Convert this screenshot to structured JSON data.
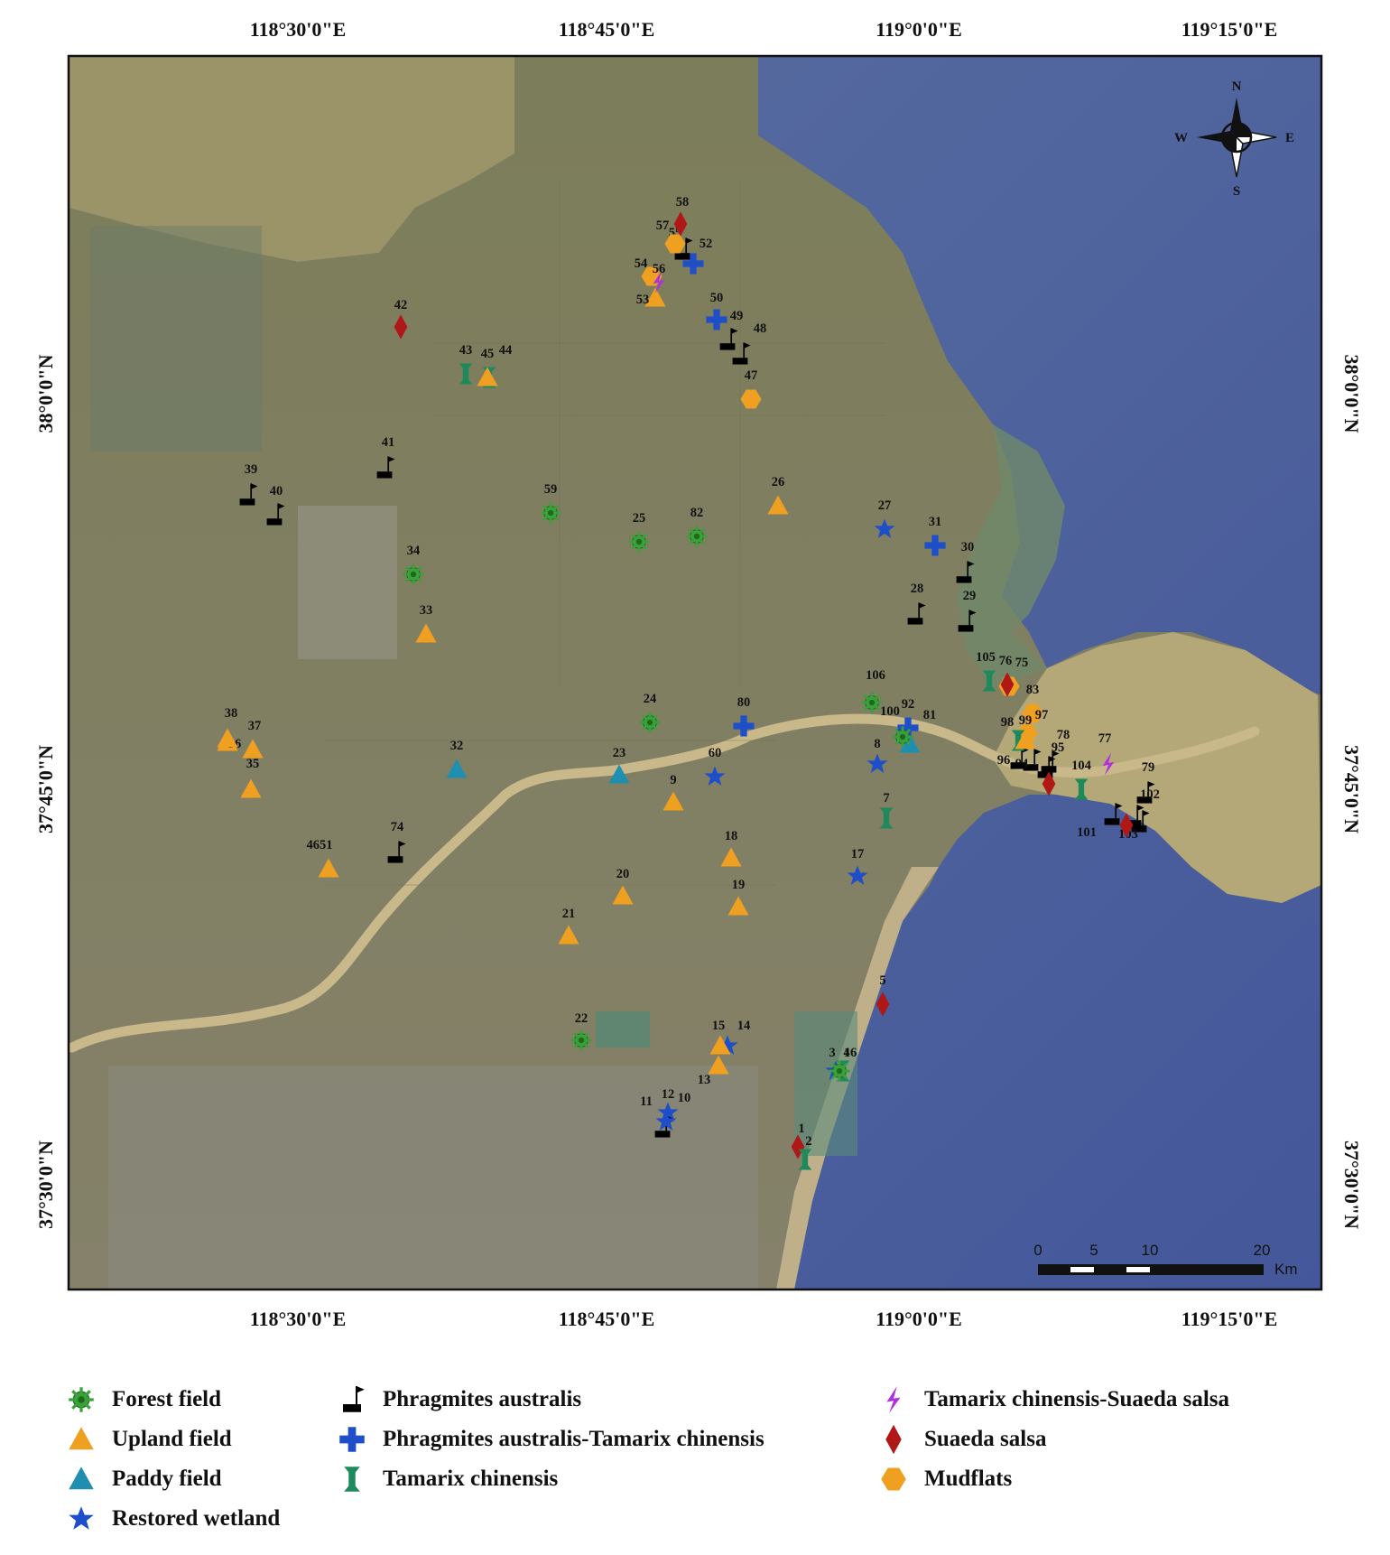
{
  "axes": {
    "top_ticks": [
      "118°30'0\"E",
      "118°45'0\"E",
      "119°0'0\"E",
      "119°15'0\"E"
    ],
    "bottom_ticks": [
      "118°30'0\"E",
      "118°45'0\"E",
      "119°0'0\"E",
      "119°15'0\"E"
    ],
    "left_ticks": [
      "38°0'0\"N",
      "37°45'0\"N",
      "37°30'0\"N"
    ],
    "right_ticks": [
      "38°0'0\"N",
      "37°45'0\"N",
      "37°30'0\"N"
    ]
  },
  "north_arrow": {
    "n": "N",
    "s": "S",
    "e": "E",
    "w": "W"
  },
  "scale_bar": {
    "ticks": [
      "0",
      "5",
      "10",
      "20"
    ],
    "unit": "Km"
  },
  "legend": [
    {
      "key": "forest",
      "label": "Forest field"
    },
    {
      "key": "upland",
      "label": "Upland field"
    },
    {
      "key": "paddy",
      "label": "Paddy field"
    },
    {
      "key": "restored",
      "label": "Restored wetland"
    },
    {
      "key": "phrag",
      "label": "Phragmites australis"
    },
    {
      "key": "phragtam",
      "label": "Phragmites australis-Tamarix chinensis"
    },
    {
      "key": "tamarix",
      "label": "Tamarix chinensis"
    },
    {
      "key": "tamsuaeda",
      "label": "Tamarix chinensis-Suaeda salsa"
    },
    {
      "key": "suaeda",
      "label": "Suaeda salsa"
    },
    {
      "key": "mudflat",
      "label": "Mudflats"
    }
  ],
  "colors": {
    "forest": "#3aa03a",
    "upland": "#f0a020",
    "paddy": "#1f8fb0",
    "restored": "#1f4fc8",
    "phrag": "#000000",
    "phragtam": "#1f4fc8",
    "tamarix": "#1e8a5c",
    "tamsuaeda": "#b030e0",
    "suaeda": "#b01818",
    "mudflat": "#f0a020",
    "sea": "#4a6aa0",
    "land": "#7a7a5c",
    "river": "#c8b88a"
  },
  "sites": [
    {
      "id": "1",
      "type": "suaeda"
    },
    {
      "id": "2",
      "type": "tamarix"
    },
    {
      "id": "3",
      "type": "restored"
    },
    {
      "id": "4",
      "type": "tamarix"
    },
    {
      "id": "16",
      "type": "forest"
    },
    {
      "id": "5",
      "type": "suaeda"
    },
    {
      "id": "7",
      "type": "tamarix"
    },
    {
      "id": "8",
      "type": "restored"
    },
    {
      "id": "9",
      "type": "upland"
    },
    {
      "id": "10",
      "type": "restored"
    },
    {
      "id": "11",
      "type": "phrag"
    },
    {
      "id": "12",
      "type": "restored"
    },
    {
      "id": "13",
      "type": "upland"
    },
    {
      "id": "14",
      "type": "restored"
    },
    {
      "id": "15",
      "type": "upland"
    },
    {
      "id": "17",
      "type": "restored"
    },
    {
      "id": "18",
      "type": "upland"
    },
    {
      "id": "19",
      "type": "upland"
    },
    {
      "id": "20",
      "type": "upland"
    },
    {
      "id": "21",
      "type": "upland"
    },
    {
      "id": "22",
      "type": "forest"
    },
    {
      "id": "23",
      "type": "paddy"
    },
    {
      "id": "24",
      "type": "forest"
    },
    {
      "id": "25",
      "type": "forest"
    },
    {
      "id": "26",
      "type": "upland"
    },
    {
      "id": "27",
      "type": "restored"
    },
    {
      "id": "28",
      "type": "phrag"
    },
    {
      "id": "29",
      "type": "phrag"
    },
    {
      "id": "30",
      "type": "phrag"
    },
    {
      "id": "31",
      "type": "phragtam"
    },
    {
      "id": "32",
      "type": "paddy"
    },
    {
      "id": "33",
      "type": "upland"
    },
    {
      "id": "34",
      "type": "forest"
    },
    {
      "id": "35",
      "type": "upland"
    },
    {
      "id": "36",
      "type": "upland"
    },
    {
      "id": "37",
      "type": "upland"
    },
    {
      "id": "38",
      "type": "upland"
    },
    {
      "id": "39",
      "type": "phrag"
    },
    {
      "id": "40",
      "type": "phrag"
    },
    {
      "id": "41",
      "type": "phrag"
    },
    {
      "id": "42",
      "type": "suaeda"
    },
    {
      "id": "43",
      "type": "tamarix"
    },
    {
      "id": "44",
      "type": "tamarix"
    },
    {
      "id": "45",
      "type": "upland"
    },
    {
      "id": "4651",
      "type": "upland"
    },
    {
      "id": "47",
      "type": "mudflat"
    },
    {
      "id": "48",
      "type": "phrag"
    },
    {
      "id": "49",
      "type": "phrag"
    },
    {
      "id": "50",
      "type": "phragtam"
    },
    {
      "id": "52",
      "type": "phragtam"
    },
    {
      "id": "53",
      "type": "upland"
    },
    {
      "id": "54",
      "type": "mudflat"
    },
    {
      "id": "55",
      "type": "phrag"
    },
    {
      "id": "56",
      "type": "tamsuaeda"
    },
    {
      "id": "57",
      "type": "mudflat"
    },
    {
      "id": "58",
      "type": "suaeda"
    },
    {
      "id": "59",
      "type": "forest"
    },
    {
      "id": "60",
      "type": "restored"
    },
    {
      "id": "74",
      "type": "phrag"
    },
    {
      "id": "75",
      "type": "mudflat"
    },
    {
      "id": "76",
      "type": "suaeda"
    },
    {
      "id": "77",
      "type": "tamsuaeda"
    },
    {
      "id": "78",
      "type": "phrag"
    },
    {
      "id": "79",
      "type": "phrag"
    },
    {
      "id": "80",
      "type": "phragtam"
    },
    {
      "id": "81",
      "type": "paddy"
    },
    {
      "id": "82",
      "type": "forest"
    },
    {
      "id": "83",
      "type": "mudflat"
    },
    {
      "id": "92",
      "type": "phragtam"
    },
    {
      "id": "94",
      "type": "phrag"
    },
    {
      "id": "95",
      "type": "phrag"
    },
    {
      "id": "96",
      "type": "phrag"
    },
    {
      "id": "97",
      "type": "mudflat"
    },
    {
      "id": "98",
      "type": "tamarix"
    },
    {
      "id": "99",
      "type": "upland"
    },
    {
      "id": "100",
      "type": "forest"
    },
    {
      "id": "101",
      "type": "phrag"
    },
    {
      "id": "102",
      "type": "phrag"
    },
    {
      "id": "103",
      "type": "phrag"
    },
    {
      "id": "104",
      "type": "tamarix"
    },
    {
      "id": "105",
      "type": "tamarix"
    },
    {
      "id": "106",
      "type": "forest"
    },
    {
      "id": "suaeda-2",
      "type": "suaeda",
      "label": ""
    },
    {
      "id": "suaeda-3",
      "type": "suaeda",
      "label": ""
    }
  ]
}
